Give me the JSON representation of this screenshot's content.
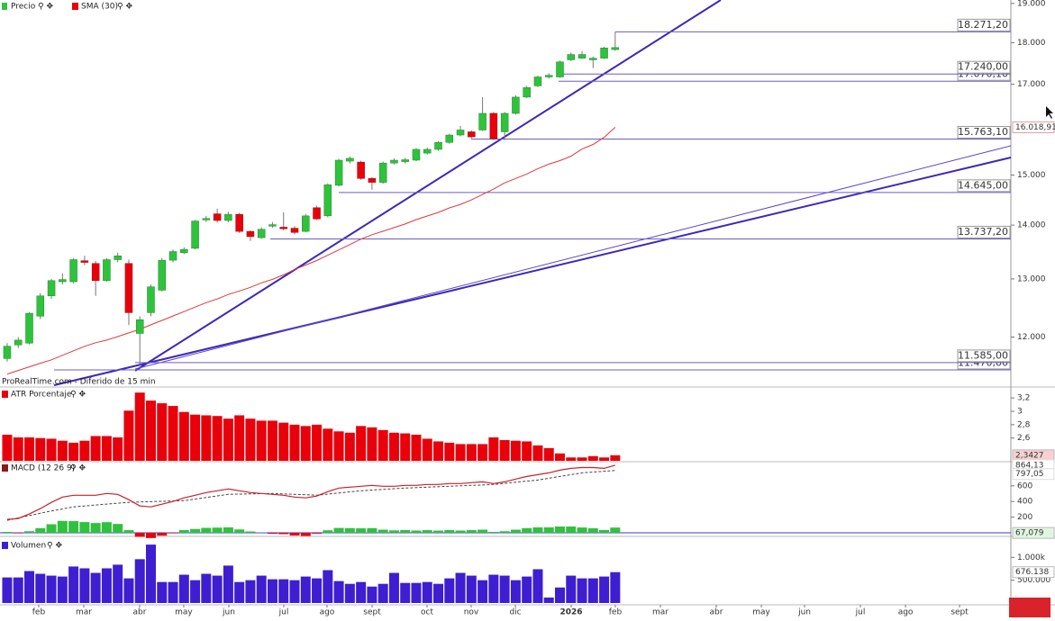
{
  "chart_data": [
    {
      "type": "candlestick",
      "name": "Precio",
      "up_color": "#2fc23c",
      "down_color": "#e8000b",
      "log": true,
      "note": "ProRealTime.com - Diferido de 15 min",
      "open": [
        11650,
        11870,
        11900,
        12350,
        12700,
        12950,
        12950,
        13330,
        13280,
        12970,
        13350,
        13280,
        12060,
        12410,
        12800,
        13340,
        13480,
        13560,
        14100,
        14220,
        14090,
        14210,
        13880,
        13760,
        13980,
        13960,
        13940,
        13880,
        14340,
        14180,
        14790,
        15290,
        15270,
        14930,
        14850,
        15250,
        15280,
        15310,
        15460,
        15540,
        15690,
        15850,
        15920,
        15960,
        16330,
        15920,
        16330,
        16700,
        16960,
        17170,
        17170,
        17580,
        17620,
        17580,
        17620,
        17830
      ],
      "high": [
        11900,
        12000,
        12420,
        12750,
        13000,
        13100,
        13380,
        13420,
        13330,
        13380,
        13480,
        13350,
        12350,
        12900,
        13380,
        13540,
        13580,
        14100,
        14180,
        14320,
        14260,
        14240,
        13900,
        13960,
        14060,
        14250,
        13980,
        14220,
        14380,
        14830,
        15340,
        15390,
        15300,
        14960,
        15280,
        15350,
        15360,
        15570,
        15580,
        15720,
        15880,
        16050,
        15950,
        16700,
        16360,
        16360,
        16740,
        16960,
        17200,
        17260,
        17560,
        17760,
        17790,
        17660,
        17900,
        18271.2
      ],
      "low": [
        11600,
        11820,
        11880,
        12300,
        12650,
        12900,
        12920,
        13250,
        12700,
        12950,
        13300,
        12200,
        11550,
        12350,
        12780,
        13300,
        13450,
        13540,
        14060,
        14050,
        14060,
        13850,
        13700,
        13740,
        13950,
        13900,
        13820,
        13860,
        14100,
        14150,
        14760,
        15240,
        14900,
        14700,
        14820,
        15220,
        15240,
        15290,
        15430,
        15510,
        15660,
        15820,
        15780,
        15940,
        15740,
        15740,
        16300,
        16680,
        16930,
        17130,
        17150,
        17550,
        17600,
        17380,
        17600,
        17800
      ],
      "close": [
        11850,
        11950,
        12400,
        12700,
        12970,
        12990,
        13350,
        13300,
        12970,
        13350,
        13420,
        12410,
        12290,
        12860,
        13340,
        13500,
        13540,
        14080,
        14130,
        14090,
        14210,
        13880,
        13780,
        13920,
        14010,
        13930,
        13860,
        14180,
        14120,
        14800,
        15310,
        15350,
        14930,
        14850,
        15250,
        15310,
        15320,
        15540,
        15540,
        15690,
        15850,
        15960,
        15810,
        16330,
        15770,
        16330,
        16700,
        16920,
        17170,
        17210,
        17530,
        17710,
        17710,
        17620,
        17870,
        17880
      ],
      "overlay": {
        "name": "SMA (30)",
        "color": "#e0383a",
        "last_label": "16.018,91",
        "values": [
          11404,
          11461,
          11518,
          11575,
          11630,
          11702,
          11774,
          11848,
          11906,
          11950,
          12008,
          12068,
          12128,
          12204,
          12278,
          12354,
          12428,
          12506,
          12582,
          12646,
          12724,
          12787,
          12850,
          12930,
          12992,
          13074,
          13171,
          13251,
          13333,
          13431,
          13530,
          13631,
          13733,
          13817,
          13884,
          13953,
          14022,
          14108,
          14178,
          14248,
          14336,
          14406,
          14495,
          14603,
          14712,
          14839,
          14930,
          15023,
          15132,
          15227,
          15301,
          15396,
          15548,
          15645,
          15800,
          16018.91
        ]
      },
      "levels": [
        {
          "value": 17070.1,
          "label": "17.070,10"
        },
        {
          "value": 17240,
          "label": "17.240,00"
        },
        {
          "value": 18271.2,
          "label": "18.271,20"
        },
        {
          "value": 15763.1,
          "label": "15.763,10"
        },
        {
          "value": 14645,
          "label": "14.645,00"
        },
        {
          "value": 13737.2,
          "label": "13.737,20"
        },
        {
          "value": 11470,
          "label": "11.470,00"
        },
        {
          "value": 11585,
          "label": "11.585,00"
        }
      ],
      "ylim": [
        11230,
        19090
      ],
      "yticks": [
        {
          "value": 12000,
          "label": "12.000"
        },
        {
          "value": 13000,
          "label": "13.000"
        },
        {
          "value": 14000,
          "label": "14.000"
        },
        {
          "value": 15000,
          "label": "15.000"
        },
        {
          "value": 17000,
          "label": "17.000"
        },
        {
          "value": 18000,
          "label": "18.000"
        },
        {
          "value": 19000,
          "label": "19.000"
        }
      ]
    },
    {
      "type": "bar",
      "name": "ATR Porcentaje",
      "color": "#e8000b",
      "last_label": "2,3427",
      "values": [
        2.65,
        2.61,
        2.61,
        2.6,
        2.59,
        2.56,
        2.53,
        2.56,
        2.63,
        2.63,
        2.61,
        3.01,
        3.28,
        3.16,
        3.12,
        3.08,
        2.99,
        2.95,
        2.94,
        2.93,
        2.89,
        2.94,
        2.89,
        2.86,
        2.86,
        2.83,
        2.8,
        2.78,
        2.8,
        2.74,
        2.7,
        2.68,
        2.78,
        2.76,
        2.72,
        2.68,
        2.67,
        2.65,
        2.59,
        2.55,
        2.53,
        2.51,
        2.51,
        2.51,
        2.61,
        2.57,
        2.56,
        2.55,
        2.49,
        2.45,
        2.37,
        2.31,
        2.31,
        2.33,
        2.31,
        2.3427
      ],
      "ylim": [
        2.26,
        3.35
      ],
      "yticks": [
        {
          "value": 2.6,
          "label": "2,6"
        },
        {
          "value": 2.8,
          "label": "2,8"
        },
        3,
        {
          "value": 3.2,
          "label": "3,2"
        }
      ]
    },
    {
      "type": "macd",
      "name": "MACD (12 26 9)",
      "macd": {
        "color": "#c8202a",
        "last_label": "864,13",
        "values": [
          171,
          183,
          240,
          309,
          389,
          457,
          480,
          480,
          480,
          503,
          491,
          423,
          343,
          331,
          366,
          400,
          446,
          480,
          514,
          537,
          560,
          537,
          514,
          503,
          491,
          480,
          457,
          446,
          469,
          526,
          571,
          583,
          594,
          606,
          594,
          594,
          606,
          606,
          617,
          617,
          629,
          629,
          640,
          651,
          629,
          651,
          686,
          720,
          743,
          766,
          800,
          823,
          834,
          834,
          823,
          864.13
        ]
      },
      "signal": {
        "color": "#444444",
        "last_label": "797,05",
        "values": [
          160,
          190,
          220,
          250,
          280,
          305,
          331,
          343,
          355,
          367,
          378,
          389,
          394,
          398,
          402,
          407,
          411,
          431,
          451,
          471,
          491,
          494,
          497,
          500,
          503,
          497,
          491,
          486,
          480,
          494,
          509,
          523,
          537,
          546,
          554,
          563,
          571,
          577,
          583,
          589,
          594,
          600,
          606,
          611,
          617,
          631,
          646,
          660,
          674,
          697,
          720,
          743,
          766,
          776,
          787,
          797.05
        ]
      },
      "histogram": {
        "up_color": "#2fc23c",
        "down_color": "#e8000b",
        "last_label": "67,079",
        "values": [
          11,
          -7,
          20,
          59,
          109,
          152,
          149,
          137,
          125,
          136,
          113,
          34,
          -51,
          -67,
          -36,
          -7,
          35,
          49,
          63,
          66,
          69,
          43,
          17,
          3,
          -12,
          -17,
          -34,
          -40,
          -11,
          32,
          62,
          60,
          57,
          60,
          40,
          31,
          35,
          29,
          34,
          28,
          35,
          29,
          34,
          40,
          12,
          20,
          40,
          60,
          69,
          69,
          80,
          80,
          68,
          58,
          36,
          67.079
        ]
      },
      "ylim": [
        -23,
        897
      ],
      "yticks": [
        200,
        400,
        600
      ]
    },
    {
      "type": "bar",
      "name": "Volumen",
      "color": "#3d1fd1",
      "last_label": "676.138",
      "values": [
        560000,
        560000,
        700000,
        640000,
        600000,
        580000,
        800000,
        760000,
        660000,
        760000,
        840000,
        540000,
        960000,
        1280000,
        460000,
        460000,
        620000,
        500000,
        640000,
        600000,
        820000,
        460000,
        500000,
        600000,
        520000,
        520000,
        500000,
        580000,
        540000,
        720000,
        480000,
        420000,
        460000,
        360000,
        420000,
        660000,
        440000,
        440000,
        460000,
        420000,
        540000,
        660000,
        600000,
        500000,
        620000,
        600000,
        500000,
        580000,
        740000,
        120000,
        340000,
        600000,
        540000,
        540000,
        580000,
        676138
      ],
      "ylim": [
        0,
        1440000
      ],
      "yticks": [
        {
          "value": 500000,
          "label": "500.000"
        },
        {
          "value": 1000000,
          "label": "1.000k"
        }
      ],
      "xlim": [
        -0.65,
        90.79
      ],
      "xticks": [
        {
          "value": 2.85,
          "label": "feb"
        },
        {
          "value": 6.93,
          "label": "mar"
        },
        {
          "value": 11.98,
          "label": "abr"
        },
        {
          "value": 15.97,
          "label": "may"
        },
        {
          "value": 20.05,
          "label": "jun"
        },
        {
          "value": 25.02,
          "label": "jul"
        },
        {
          "value": 28.93,
          "label": "ago"
        },
        {
          "value": 33.01,
          "label": "sept"
        },
        {
          "value": 37.98,
          "label": "oct"
        },
        {
          "value": 41.97,
          "label": "nov"
        },
        {
          "value": 45.97,
          "label": "dic"
        },
        {
          "value": 51.02,
          "label": "2026"
        },
        {
          "value": 55.01,
          "label": "feb"
        },
        {
          "value": 59.09,
          "label": "mar"
        },
        {
          "value": 64.14,
          "label": "abr"
        },
        {
          "value": 68.22,
          "label": "may"
        },
        {
          "value": 72.13,
          "label": "jun"
        },
        {
          "value": 77.18,
          "label": "jul"
        },
        {
          "value": 81.26,
          "label": "ago"
        },
        {
          "value": 86.15,
          "label": "sept"
        }
      ]
    }
  ]
}
